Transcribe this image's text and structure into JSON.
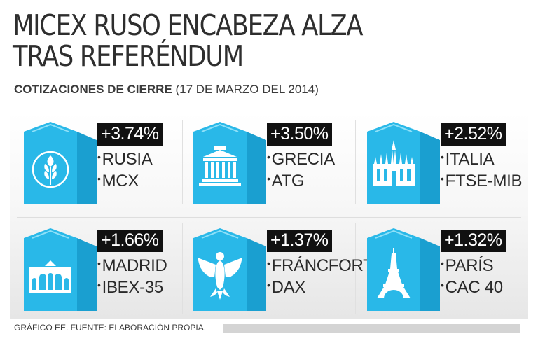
{
  "header": {
    "title_line1": "MICEX RUSO ENCABEZA ALZA",
    "title_line2": "TRAS REFERÉNDUM",
    "subtitle_bold": "COTIZACIONES DE CIERRE",
    "subtitle_date": "(17 DE MARZO DEL 2014)"
  },
  "colors": {
    "accent": "#29b8e8",
    "accent_dark": "#1a9fd0",
    "badge_bg": "#111111"
  },
  "cards": [
    {
      "change": "+3.74%",
      "country": "RUSIA",
      "index": "MCX",
      "icon": "wheat-icon"
    },
    {
      "change": "+3.50%",
      "country": "GRECIA",
      "index": "ATG",
      "icon": "greek-temple-icon"
    },
    {
      "change": "+2.52%",
      "country": "ITALIA",
      "index": "FTSE-MIB",
      "icon": "milan-cathedral-icon"
    },
    {
      "change": "+1.66%",
      "country": "MADRID",
      "index": "IBEX-35",
      "icon": "puerta-de-alcala-icon"
    },
    {
      "change": "+1.37%",
      "country": "FRÁNCFORT",
      "index": "DAX",
      "icon": "german-eagle-icon"
    },
    {
      "change": "+1.32%",
      "country": "PARÍS",
      "index": "CAC 40",
      "icon": "eiffel-tower-icon"
    }
  ],
  "footer": {
    "source": "GRÁFICO EE. FUENTE: ELABORACIÓN PROPIA."
  }
}
